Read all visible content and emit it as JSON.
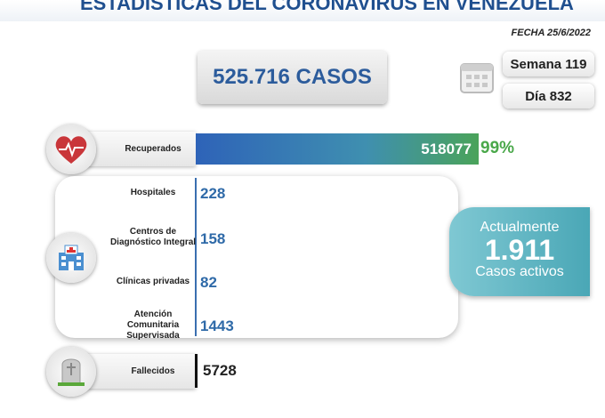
{
  "header": {
    "title": "ESTADÍSTICAS DEL CORONAVIRUS EN VENEZUELA",
    "date": "FECHA 25/6/2022"
  },
  "total_cases": "525.716 CASOS",
  "week": "Semana 119",
  "day": "Día 832",
  "recovered": {
    "label": "Recuperados",
    "value": "518077",
    "percent": "99%"
  },
  "rows": [
    {
      "label": "Hospitales",
      "value": "228"
    },
    {
      "label": "Centros de Diagnóstico Integral",
      "value": "158"
    },
    {
      "label": "Clínicas privadas",
      "value": "82"
    },
    {
      "label": "Atención Comunitaria Supervisada",
      "value": "1443"
    }
  ],
  "active": {
    "line1": "Actualmente",
    "value": "1.911",
    "line2": "Casos activos"
  },
  "deaths": {
    "label": "Fallecidos",
    "value": "5728"
  }
}
